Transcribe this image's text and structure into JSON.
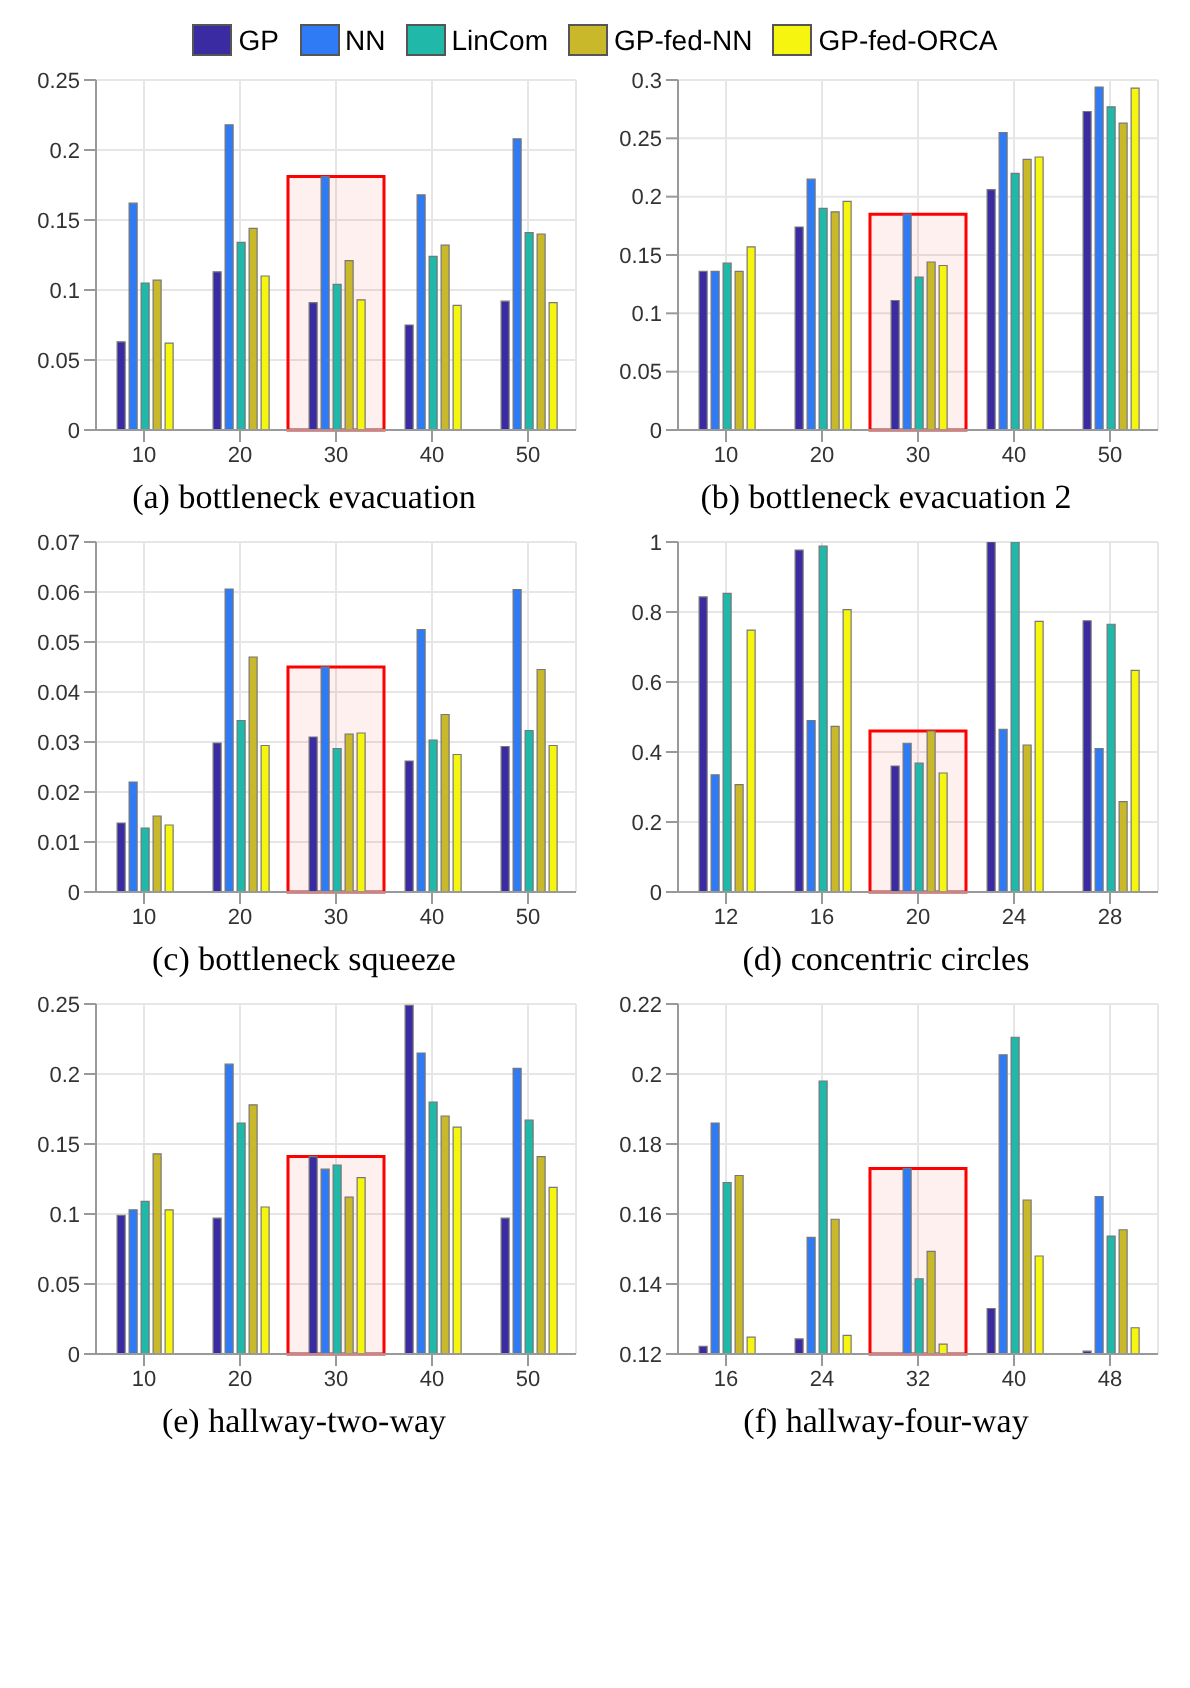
{
  "chart_data": [
    {
      "type": "bar",
      "title": "(a) bottleneck evacuation",
      "categories": [
        "10",
        "20",
        "30",
        "40",
        "50"
      ],
      "ylim": [
        0,
        0.25
      ],
      "yticks": [
        0,
        0.05,
        0.1,
        0.15,
        0.2,
        0.25
      ],
      "grid": true,
      "legend": "top",
      "bands": [
        {
          "axis": "x",
          "from": "30",
          "to": "30",
          "color": "#ff0000"
        }
      ],
      "series": [
        {
          "name": "GP",
          "color": "#3a2ba3",
          "values": [
            0.063,
            0.113,
            0.091,
            0.075,
            0.092
          ]
        },
        {
          "name": "NN",
          "color": "#2f7bf5",
          "values": [
            0.162,
            0.218,
            0.181,
            0.168,
            0.208
          ]
        },
        {
          "name": "LinCom",
          "color": "#20b8a8",
          "values": [
            0.105,
            0.134,
            0.104,
            0.124,
            0.141
          ]
        },
        {
          "name": "GP-fed-NN",
          "color": "#c9b92a",
          "values": [
            0.107,
            0.144,
            0.121,
            0.132,
            0.14
          ]
        },
        {
          "name": "GP-fed-ORCA",
          "color": "#f5f510",
          "values": [
            0.062,
            0.11,
            0.093,
            0.089,
            0.091
          ]
        }
      ]
    },
    {
      "type": "bar",
      "title": "(b) bottleneck evacuation 2",
      "categories": [
        "10",
        "20",
        "30",
        "40",
        "50"
      ],
      "ylim": [
        0,
        0.3
      ],
      "yticks": [
        0,
        0.05,
        0.1,
        0.15,
        0.2,
        0.25,
        0.3
      ],
      "grid": true,
      "bands": [
        {
          "axis": "x",
          "from": "30",
          "to": "30",
          "color": "#ff0000"
        }
      ],
      "series": [
        {
          "color": "#3a2ba3",
          "values": [
            0.136,
            0.174,
            0.111,
            0.206,
            0.273
          ]
        },
        {
          "color": "#2f7bf5",
          "values": [
            0.136,
            0.215,
            0.185,
            0.255,
            0.294
          ]
        },
        {
          "color": "#20b8a8",
          "values": [
            0.143,
            0.19,
            0.131,
            0.22,
            0.277
          ]
        },
        {
          "color": "#c9b92a",
          "values": [
            0.136,
            0.187,
            0.144,
            0.232,
            0.263
          ]
        },
        {
          "color": "#f5f510",
          "values": [
            0.157,
            0.196,
            0.141,
            0.234,
            0.293
          ]
        }
      ]
    },
    {
      "type": "bar",
      "title": "(c) bottleneck squeeze",
      "categories": [
        "10",
        "20",
        "30",
        "40",
        "50"
      ],
      "ylim": [
        0,
        0.07
      ],
      "yticks": [
        0,
        0.01,
        0.02,
        0.03,
        0.04,
        0.05,
        0.06,
        0.07
      ],
      "grid": true,
      "bands": [
        {
          "axis": "x",
          "from": "30",
          "to": "30",
          "color": "#ff0000"
        }
      ],
      "series": [
        {
          "color": "#3a2ba3",
          "values": [
            0.0138,
            0.0298,
            0.031,
            0.0262,
            0.0291
          ]
        },
        {
          "color": "#2f7bf5",
          "values": [
            0.022,
            0.0606,
            0.045,
            0.0525,
            0.0605
          ]
        },
        {
          "color": "#20b8a8",
          "values": [
            0.0128,
            0.0343,
            0.0287,
            0.0304,
            0.0323
          ]
        },
        {
          "color": "#c9b92a",
          "values": [
            0.0152,
            0.047,
            0.0316,
            0.0355,
            0.0445
          ]
        },
        {
          "color": "#f5f510",
          "values": [
            0.0134,
            0.0293,
            0.0318,
            0.0275,
            0.0293
          ]
        }
      ]
    },
    {
      "type": "bar",
      "title": "(d) concentric circles",
      "categories": [
        "12",
        "16",
        "20",
        "24",
        "28"
      ],
      "ylim": [
        0,
        1
      ],
      "yticks": [
        0,
        0.2,
        0.4,
        0.6,
        0.8,
        1
      ],
      "grid": true,
      "bands": [
        {
          "axis": "x",
          "from": "20",
          "to": "20",
          "color": "#ff0000"
        }
      ],
      "series": [
        {
          "color": "#3a2ba3",
          "values": [
            0.843,
            0.977,
            0.36,
            1.0,
            0.775
          ]
        },
        {
          "color": "#2f7bf5",
          "values": [
            0.335,
            0.49,
            0.425,
            0.465,
            0.41
          ]
        },
        {
          "color": "#20b8a8",
          "values": [
            0.853,
            0.988,
            0.368,
            1.0,
            0.765
          ]
        },
        {
          "color": "#c9b92a",
          "values": [
            0.307,
            0.473,
            0.46,
            0.42,
            0.258
          ]
        },
        {
          "color": "#f5f510",
          "values": [
            0.748,
            0.807,
            0.34,
            0.773,
            0.633
          ]
        }
      ]
    },
    {
      "type": "bar",
      "title": "(e) hallway-two-way",
      "categories": [
        "10",
        "20",
        "30",
        "40",
        "50"
      ],
      "ylim": [
        0,
        0.25
      ],
      "yticks": [
        0,
        0.05,
        0.1,
        0.15,
        0.2,
        0.25
      ],
      "grid": true,
      "bands": [
        {
          "axis": "x",
          "from": "30",
          "to": "30",
          "color": "#ff0000"
        }
      ],
      "series": [
        {
          "color": "#3a2ba3",
          "values": [
            0.099,
            0.097,
            0.141,
            0.249,
            0.097
          ]
        },
        {
          "color": "#2f7bf5",
          "values": [
            0.103,
            0.207,
            0.132,
            0.215,
            0.204
          ]
        },
        {
          "color": "#20b8a8",
          "values": [
            0.109,
            0.165,
            0.135,
            0.18,
            0.167
          ]
        },
        {
          "color": "#c9b92a",
          "values": [
            0.143,
            0.178,
            0.112,
            0.17,
            0.141
          ]
        },
        {
          "color": "#f5f510",
          "values": [
            0.103,
            0.105,
            0.126,
            0.162,
            0.119
          ]
        }
      ]
    },
    {
      "type": "bar",
      "title": "(f) hallway-four-way",
      "categories": [
        "16",
        "24",
        "32",
        "40",
        "48"
      ],
      "ylim": [
        0.12,
        0.22
      ],
      "yticks": [
        0.12,
        0.14,
        0.16,
        0.18,
        0.2,
        0.22
      ],
      "grid": true,
      "bands": [
        {
          "axis": "x",
          "from": "32",
          "to": "32",
          "color": "#ff0000"
        }
      ],
      "series": [
        {
          "color": "#3a2ba3",
          "values": [
            0.1222,
            0.1243,
            null,
            0.133,
            0.1208
          ]
        },
        {
          "color": "#2f7bf5",
          "values": [
            0.186,
            0.1533,
            0.173,
            0.2055,
            0.165
          ]
        },
        {
          "color": "#20b8a8",
          "values": [
            0.169,
            0.198,
            0.1415,
            0.2105,
            0.1537
          ]
        },
        {
          "color": "#c9b92a",
          "values": [
            0.171,
            0.1585,
            0.1493,
            0.164,
            0.1555
          ]
        },
        {
          "color": "#f5f510",
          "values": [
            0.1248,
            0.1253,
            0.1228,
            0.148,
            0.1275
          ]
        }
      ]
    }
  ]
}
